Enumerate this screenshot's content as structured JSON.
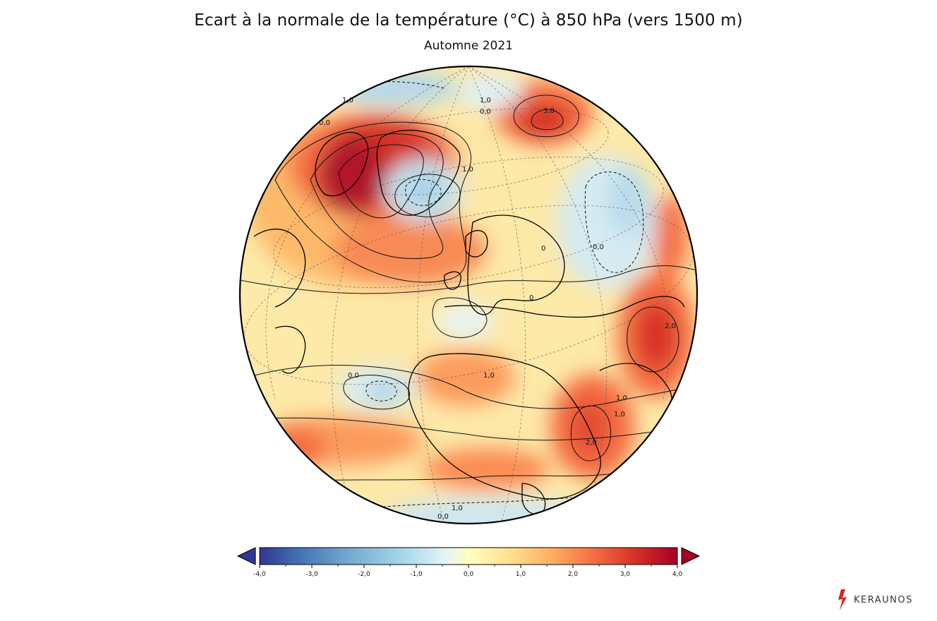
{
  "header": {
    "title": "Ecart à la normale de la température (°C) à 850 hPa (vers 1500 m)",
    "subtitle": "Automne 2021"
  },
  "map": {
    "projection": "orthographic",
    "contour_labels": [
      "1,0",
      "0,0",
      "1,0",
      "0,0",
      "3,0",
      "1,0",
      "0,0",
      "0",
      "0",
      "1,0",
      "2,0",
      "0,0",
      "1,0",
      "1,0",
      "2,0",
      "1,0",
      "0,0"
    ]
  },
  "colorbar": {
    "ticks": [
      "-4,0",
      "-3,0",
      "-2,0",
      "-1,0",
      "0,0",
      "1,0",
      "2,0",
      "3,0",
      "4,0"
    ],
    "colors": [
      "#313695",
      "#4575b4",
      "#74add1",
      "#abd9e9",
      "#e0f3f8",
      "#ffffbf",
      "#fee090",
      "#fdae61",
      "#f46d43",
      "#d73027",
      "#a50026"
    ]
  },
  "logo": {
    "name": "KERAUNOS",
    "accent": "#e02020"
  }
}
